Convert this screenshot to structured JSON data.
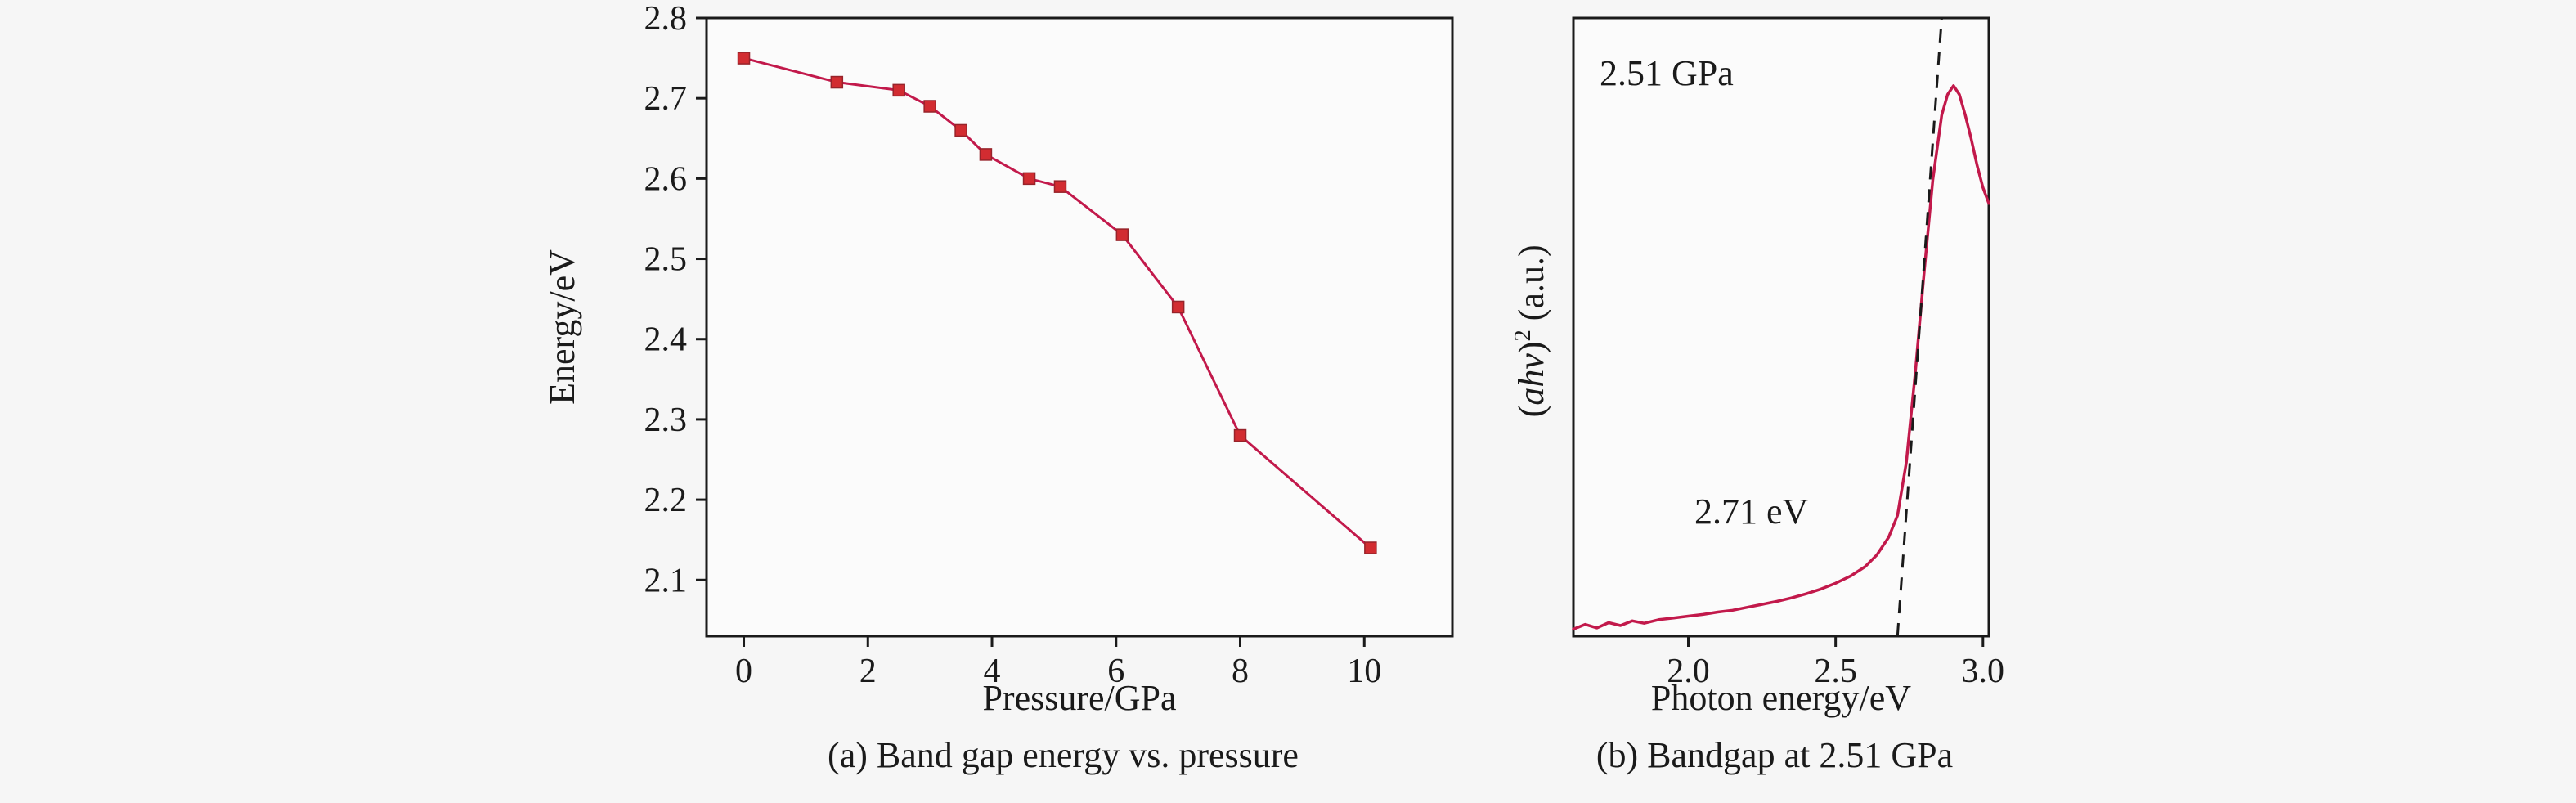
{
  "page": {
    "background": "#f6f6f6",
    "text_color": "#1a1a1a"
  },
  "chart_data": [
    {
      "type": "line",
      "caption": "(a) Band gap energy vs. pressure",
      "xlabel": "Pressure/GPa",
      "ylabel": "Energy/eV",
      "xlim": [
        -0.6,
        11.42
      ],
      "ylim": [
        2.03,
        2.8
      ],
      "xticks": [
        0,
        2,
        4,
        6,
        8,
        10
      ],
      "xtick_labels": [
        "0",
        "2",
        "4",
        "6",
        "8",
        "10"
      ],
      "yticks": [
        2.1,
        2.2,
        2.3,
        2.4,
        2.5,
        2.6,
        2.7,
        2.8
      ],
      "ytick_labels": [
        "2.1",
        "2.2",
        "2.3",
        "2.4",
        "2.5",
        "2.6",
        "2.7",
        "2.8"
      ],
      "x": [
        0,
        1.5,
        2.5,
        3.0,
        3.5,
        3.9,
        4.6,
        5.1,
        6.1,
        7.0,
        8.0,
        10.1
      ],
      "y": [
        2.75,
        2.72,
        2.71,
        2.69,
        2.66,
        2.63,
        2.6,
        2.59,
        2.53,
        2.44,
        2.28,
        2.14
      ],
      "marker": "square",
      "line_color": "#c2194b",
      "marker_color": "#d22c31",
      "grid": false,
      "legend": null
    },
    {
      "type": "line",
      "caption": "(b) Bandgap at 2.51 GPa",
      "xlabel": "Photon energy/eV",
      "ylabel_text": "(ahv)² (a.u.)",
      "ylabel_parts": [
        {
          "t": "("
        },
        {
          "t": "ahv",
          "i": true
        },
        {
          "t": ")"
        },
        {
          "t": "2",
          "sup": true
        },
        {
          "t": " (a.u.)"
        }
      ],
      "xlim": [
        1.61,
        3.02
      ],
      "ylim": [
        0,
        1.05
      ],
      "xticks": [
        2.0,
        2.5,
        3.0
      ],
      "xtick_labels": [
        "2.0",
        "2.5",
        "3.0"
      ],
      "yticks": [],
      "ytick_labels": [],
      "curve": [
        [
          1.61,
          0.012
        ],
        [
          1.65,
          0.02
        ],
        [
          1.69,
          0.014
        ],
        [
          1.73,
          0.023
        ],
        [
          1.77,
          0.018
        ],
        [
          1.81,
          0.026
        ],
        [
          1.85,
          0.022
        ],
        [
          1.9,
          0.028
        ],
        [
          1.95,
          0.031
        ],
        [
          2.0,
          0.034
        ],
        [
          2.05,
          0.037
        ],
        [
          2.1,
          0.041
        ],
        [
          2.15,
          0.044
        ],
        [
          2.2,
          0.049
        ],
        [
          2.25,
          0.054
        ],
        [
          2.3,
          0.059
        ],
        [
          2.35,
          0.065
        ],
        [
          2.4,
          0.072
        ],
        [
          2.45,
          0.08
        ],
        [
          2.5,
          0.09
        ],
        [
          2.55,
          0.102
        ],
        [
          2.6,
          0.118
        ],
        [
          2.64,
          0.138
        ],
        [
          2.68,
          0.168
        ],
        [
          2.71,
          0.205
        ],
        [
          2.74,
          0.295
        ],
        [
          2.77,
          0.445
        ],
        [
          2.8,
          0.615
        ],
        [
          2.83,
          0.775
        ],
        [
          2.86,
          0.885
        ],
        [
          2.88,
          0.92
        ],
        [
          2.9,
          0.935
        ],
        [
          2.92,
          0.92
        ],
        [
          2.94,
          0.885
        ],
        [
          2.96,
          0.845
        ],
        [
          2.98,
          0.8
        ],
        [
          3.0,
          0.762
        ],
        [
          3.02,
          0.735
        ]
      ],
      "tangent": {
        "x1": 2.71,
        "y1": 0,
        "x2": 2.86,
        "y2": 1.05,
        "style": "dashed"
      },
      "annotations": [
        {
          "text": "2.51 GPa",
          "position": "top-left"
        },
        {
          "text": "2.71 eV",
          "position": "left-of-tangent-base"
        }
      ],
      "line_color": "#c2194b",
      "grid": false
    }
  ]
}
